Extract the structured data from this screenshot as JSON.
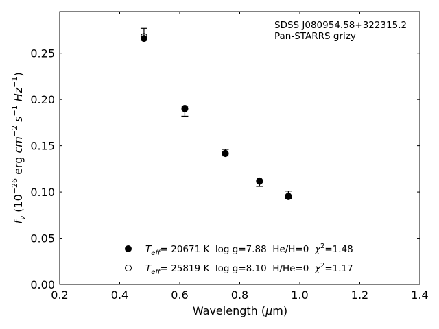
{
  "chart_data": {
    "type": "scatter",
    "xlabel": "Wavelength (μm)",
    "xlabel_parts": {
      "pre": "Wavelength (",
      "mu": "μ",
      "post": "m)"
    },
    "ylabel_parts": {
      "f": "f",
      "nu": "ν",
      "paren_open": " (10",
      "exp1": "−26",
      "erg": " erg ",
      "cm": "cm",
      "exp2": "−2",
      "s": " s",
      "exp3": "−1",
      "hz": " Hz",
      "exp4": "−1",
      "paren_close": ")"
    },
    "xlim": [
      0.2,
      1.4
    ],
    "ylim": [
      0.0,
      0.295
    ],
    "x_ticks": [
      0.2,
      0.4,
      0.6,
      0.8,
      1.0,
      1.2,
      1.4
    ],
    "x_tick_labels": [
      "0.2",
      "0.4",
      "0.6",
      "0.8",
      "1.0",
      "1.2",
      "1.4"
    ],
    "y_ticks": [
      0.0,
      0.05,
      0.1,
      0.15,
      0.2,
      0.25
    ],
    "y_tick_labels": [
      "0.00",
      "0.05",
      "0.10",
      "0.15",
      "0.20",
      "0.25"
    ],
    "grid": false,
    "annotation": [
      "SDSS J080954.58+322315.2",
      "Pan-STARRS grizy"
    ],
    "observed": {
      "x": [
        0.481,
        0.617,
        0.752,
        0.866,
        0.962
      ],
      "y": [
        0.2705,
        0.1875,
        0.1425,
        0.109,
        0.097
      ],
      "yerr_low": [
        0.0065,
        0.0055,
        0.0035,
        0.003,
        0.004
      ],
      "yerr_high": [
        0.0065,
        0.0055,
        0.0035,
        0.003,
        0.004
      ]
    },
    "series": [
      {
        "name": "He/H=0 model",
        "marker": "filled-circle",
        "x": [
          0.481,
          0.617,
          0.752,
          0.866,
          0.962
        ],
        "y": [
          0.266,
          0.19,
          0.1415,
          0.112,
          0.095
        ]
      },
      {
        "name": "H/He=0 model",
        "marker": "open-circle",
        "x": [
          0.481,
          0.617,
          0.752,
          0.866,
          0.962
        ],
        "y": [
          0.268,
          0.1905,
          0.1418,
          0.1115,
          0.0955
        ]
      }
    ],
    "legend": [
      {
        "t": "T",
        "eff": "eff",
        "rest": "= 20671 K  log g=7.88  He/H=0  ",
        "chi": "χ",
        "sq": "2",
        "val": "=1.48"
      },
      {
        "t": "T",
        "eff": "eff",
        "rest": "= 25819 K  log g=8.10  H/He=0  ",
        "chi": "χ",
        "sq": "2",
        "val": "=1.17"
      }
    ],
    "legend_location": "lower-center",
    "marker_color": "#000000"
  }
}
